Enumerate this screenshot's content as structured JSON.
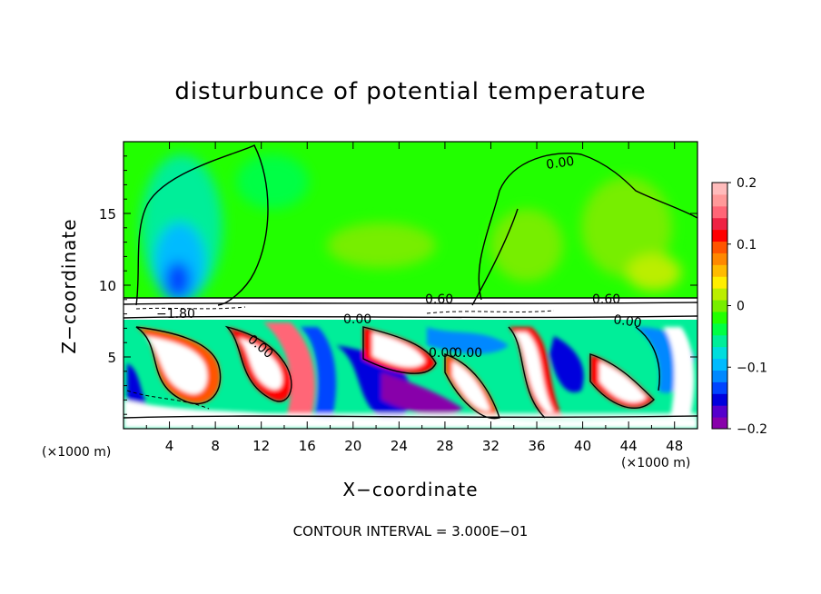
{
  "chart_data": {
    "type": "heatmap",
    "title": "disturbunce of potential temperature",
    "xlabel": "X−coordinate",
    "ylabel": "Z−coordinate",
    "x_unit_label": "(×1000 m)",
    "x_ticks": [
      "4",
      "8",
      "12",
      "16",
      "20",
      "24",
      "28",
      "32",
      "36",
      "40",
      "44",
      "48"
    ],
    "y_ticks": [
      "5",
      "10",
      "15"
    ],
    "xlim": [
      0,
      50
    ],
    "ylim": [
      0,
      20
    ],
    "colorbar": {
      "ticks": [
        "0.2",
        "0.1",
        "0",
        "−0.1",
        "−0.2"
      ],
      "tick_values": [
        0.2,
        0.1,
        0,
        -0.1,
        -0.2
      ],
      "range": [
        -0.2,
        0.2
      ],
      "colors": [
        "#8800aa",
        "#5500cc",
        "#0000dd",
        "#0044ff",
        "#0088ff",
        "#00bbff",
        "#00dddd",
        "#00ee99",
        "#00ff44",
        "#22ff00",
        "#77ee00",
        "#bbee00",
        "#ffee00",
        "#ffbb00",
        "#ff8800",
        "#ff5500",
        "#ff0000",
        "#ee2244",
        "#ff6677",
        "#ff9999",
        "#ffbbbb"
      ]
    },
    "contour_labels": [
      "0.00",
      "0.60",
      "0.60",
      "−1.80",
      "0.00",
      "0.00",
      "0.00",
      "0.00",
      "0.00"
    ],
    "contour_interval_note": "CONTOUR INTERVAL = 3.000E−01"
  }
}
